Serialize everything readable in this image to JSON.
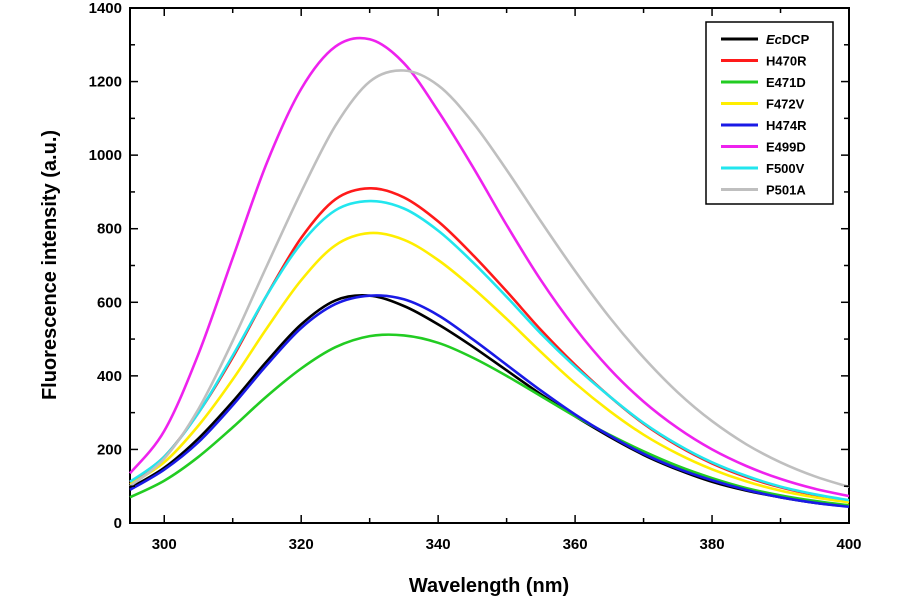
{
  "chart_data": {
    "type": "line",
    "title": "",
    "xlabel": "Wavelength (nm)",
    "ylabel": "Fluorescence intensity (a.u.)",
    "xlim": [
      295,
      400
    ],
    "ylim": [
      0,
      1400
    ],
    "x_ticks": [
      300,
      320,
      340,
      360,
      380,
      400
    ],
    "y_ticks": [
      0,
      200,
      400,
      600,
      800,
      1000,
      1200,
      1400
    ],
    "legend_position": "top-right",
    "grid": false,
    "x": [
      295,
      300,
      305,
      310,
      315,
      320,
      325,
      330,
      335,
      340,
      345,
      350,
      355,
      360,
      365,
      370,
      375,
      380,
      385,
      390,
      395,
      400
    ],
    "series": [
      {
        "name": "EcDCP",
        "color": "#000000",
        "values": [
          95,
          150,
          230,
          330,
          440,
          540,
          605,
          618,
          590,
          540,
          480,
          415,
          350,
          290,
          235,
          185,
          145,
          112,
          88,
          70,
          55,
          45
        ]
      },
      {
        "name": "H470R",
        "color": "#ff1a1a",
        "values": [
          110,
          180,
          300,
          450,
          620,
          775,
          880,
          910,
          885,
          820,
          730,
          630,
          525,
          430,
          345,
          270,
          210,
          162,
          125,
          97,
          76,
          60
        ]
      },
      {
        "name": "E471D",
        "color": "#22cc22",
        "values": [
          70,
          115,
          180,
          260,
          345,
          420,
          478,
          508,
          510,
          490,
          450,
          400,
          345,
          290,
          240,
          195,
          155,
          122,
          95,
          75,
          60,
          48
        ]
      },
      {
        "name": "F472V",
        "color": "#ffee00",
        "values": [
          105,
          165,
          265,
          390,
          530,
          660,
          755,
          788,
          770,
          715,
          640,
          555,
          465,
          380,
          305,
          240,
          188,
          146,
          113,
          88,
          70,
          56
        ]
      },
      {
        "name": "H474R",
        "color": "#1a1ae6",
        "values": [
          90,
          145,
          220,
          320,
          430,
          530,
          595,
          618,
          608,
          565,
          500,
          430,
          360,
          295,
          238,
          188,
          148,
          116,
          90,
          70,
          55,
          44
        ]
      },
      {
        "name": "E499D",
        "color": "#ee22ee",
        "values": [
          135,
          250,
          460,
          720,
          980,
          1180,
          1295,
          1315,
          1250,
          1120,
          970,
          810,
          660,
          530,
          420,
          330,
          258,
          200,
          155,
          120,
          93,
          73
        ]
      },
      {
        "name": "F500V",
        "color": "#22e6ee",
        "values": [
          112,
          180,
          300,
          455,
          620,
          760,
          850,
          875,
          855,
          795,
          710,
          615,
          515,
          425,
          345,
          272,
          213,
          165,
          128,
          99,
          78,
          62
        ]
      },
      {
        "name": "P501A",
        "color": "#bfbfbf",
        "values": [
          100,
          175,
          310,
          495,
          700,
          900,
          1080,
          1200,
          1230,
          1190,
          1090,
          960,
          820,
          685,
          560,
          450,
          355,
          277,
          214,
          165,
          127,
          98
        ]
      }
    ]
  }
}
